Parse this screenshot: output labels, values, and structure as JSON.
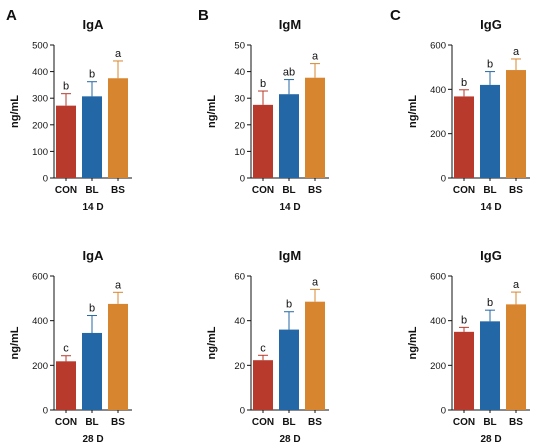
{
  "panel_letters": [
    "A",
    "B",
    "C"
  ],
  "colors": {
    "CON": "#b83a2c",
    "BL": "#2467a6",
    "BS": "#d8852f",
    "axis": "#111111"
  },
  "chart_data": [
    {
      "type": "bar",
      "title": "IgA",
      "ylabel": "ng/mL",
      "xlabel": "14 D",
      "categories": [
        "CON",
        "BL",
        "BS"
      ],
      "values": [
        272,
        307,
        375
      ],
      "errors": [
        45,
        55,
        65
      ],
      "significance": [
        "b",
        "b",
        "a"
      ],
      "ylim": [
        0,
        500
      ],
      "yticks": [
        0,
        100,
        200,
        300,
        400,
        500
      ]
    },
    {
      "type": "bar",
      "title": "IgM",
      "ylabel": "ng/mL",
      "xlabel": "14 D",
      "categories": [
        "CON",
        "BL",
        "BS"
      ],
      "values": [
        27.5,
        31.5,
        37.7
      ],
      "errors": [
        5.2,
        5.5,
        5.3
      ],
      "significance": [
        "b",
        "ab",
        "a"
      ],
      "ylim": [
        0,
        50
      ],
      "yticks": [
        0,
        10,
        20,
        30,
        40,
        50
      ]
    },
    {
      "type": "bar",
      "title": "IgG",
      "ylabel": "ng/mL",
      "xlabel": "14 D",
      "categories": [
        "CON",
        "BL",
        "BS"
      ],
      "values": [
        368,
        420,
        487
      ],
      "errors": [
        30,
        60,
        50
      ],
      "significance": [
        "b",
        "b",
        "a"
      ],
      "ylim": [
        0,
        600
      ],
      "yticks": [
        0,
        200,
        400,
        600
      ]
    },
    {
      "type": "bar",
      "title": "IgA",
      "ylabel": "ng/mL",
      "xlabel": "28 D",
      "categories": [
        "CON",
        "BL",
        "BS"
      ],
      "values": [
        218,
        345,
        475
      ],
      "errors": [
        25,
        78,
        52
      ],
      "significance": [
        "c",
        "b",
        "a"
      ],
      "ylim": [
        0,
        600
      ],
      "yticks": [
        0,
        200,
        400,
        600
      ]
    },
    {
      "type": "bar",
      "title": "IgM",
      "ylabel": "ng/mL",
      "xlabel": "28 D",
      "categories": [
        "CON",
        "BL",
        "BS"
      ],
      "values": [
        22.3,
        36,
        48.5
      ],
      "errors": [
        2.2,
        8,
        5.5
      ],
      "significance": [
        "c",
        "b",
        "a"
      ],
      "ylim": [
        0,
        60
      ],
      "yticks": [
        0,
        20,
        40,
        60
      ]
    },
    {
      "type": "bar",
      "title": "IgG",
      "ylabel": "ng/mL",
      "xlabel": "28 D",
      "categories": [
        "CON",
        "BL",
        "BS"
      ],
      "values": [
        350,
        397,
        473
      ],
      "errors": [
        20,
        50,
        55
      ],
      "significance": [
        "b",
        "b",
        "a"
      ],
      "ylim": [
        0,
        600
      ],
      "yticks": [
        0,
        200,
        400,
        600
      ]
    }
  ]
}
